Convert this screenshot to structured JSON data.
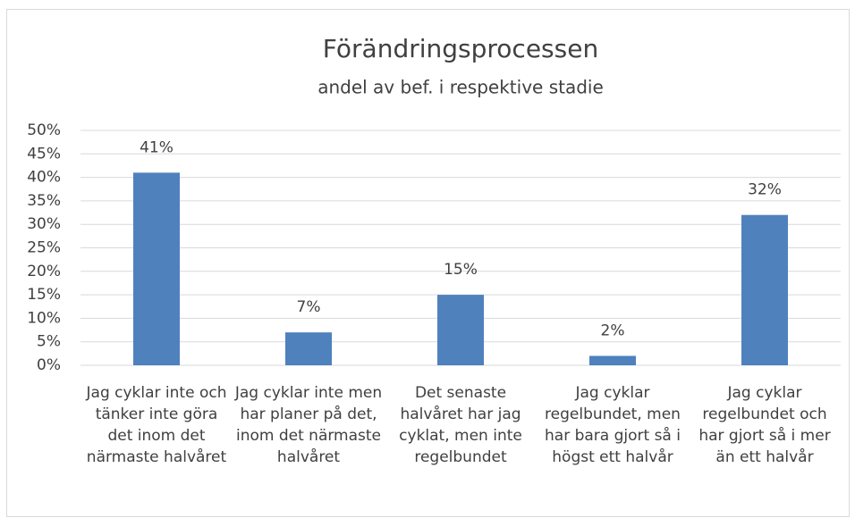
{
  "chart_data": {
    "type": "bar",
    "title": "Förändringsprocessen",
    "subtitle": "andel av bef. i respektive stadie",
    "categories": [
      "Jag cyklar inte och tänker inte göra det inom det närmaste halvåret",
      "Jag cyklar inte men har planer på det, inom det närmaste halvåret",
      "Det senaste halvåret har jag cyklat, men inte regelbundet",
      "Jag cyklar regelbundet, men har bara gjort så i högst ett halvår",
      "Jag cyklar regelbundet och har gjort så i mer än ett halvår"
    ],
    "values": [
      41,
      7,
      15,
      2,
      32
    ],
    "value_labels": [
      "41%",
      "7%",
      "15%",
      "2%",
      "32%"
    ],
    "color": "#4f81bd",
    "ylim": [
      0,
      50
    ],
    "yticks": [
      {
        "value": 0,
        "label": "0%"
      },
      {
        "value": 5,
        "label": "5%"
      },
      {
        "value": 10,
        "label": "10%"
      },
      {
        "value": 15,
        "label": "15%"
      },
      {
        "value": 20,
        "label": "20%"
      },
      {
        "value": 25,
        "label": "25%"
      },
      {
        "value": 30,
        "label": "30%"
      },
      {
        "value": 35,
        "label": "35%"
      },
      {
        "value": 40,
        "label": "40%"
      },
      {
        "value": 45,
        "label": "45%"
      },
      {
        "value": 50,
        "label": "50%"
      }
    ],
    "grid": true
  }
}
